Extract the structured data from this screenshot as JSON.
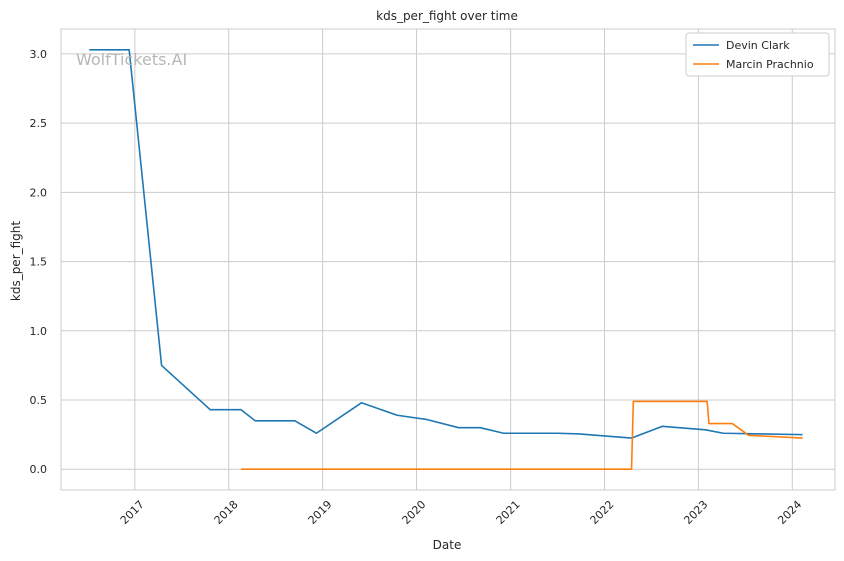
{
  "chart_data": {
    "type": "line",
    "title": "kds_per_fight over time",
    "xlabel": "Date",
    "ylabel": "kds_per_fight",
    "watermark": "WolfTickets.AI",
    "ylim": [
      -0.15,
      3.18
    ],
    "xlim": [
      "2016-03-20",
      "2024-06-15"
    ],
    "y_ticks": [
      0.0,
      0.5,
      1.0,
      1.5,
      2.0,
      2.5,
      3.0
    ],
    "y_tick_labels": [
      "0.0",
      "0.5",
      "1.0",
      "1.5",
      "2.0",
      "2.5",
      "3.0"
    ],
    "x_ticks": [
      "2017-01-01",
      "2018-01-01",
      "2019-01-01",
      "2020-01-01",
      "2021-01-01",
      "2022-01-01",
      "2023-01-01",
      "2024-01-01"
    ],
    "x_tick_labels": [
      "2017",
      "2018",
      "2019",
      "2020",
      "2021",
      "2022",
      "2023",
      "2024"
    ],
    "grid": true,
    "legend_position": "top-right",
    "series": [
      {
        "name": "Devin Clark",
        "color": "#1f77b4",
        "points": [
          {
            "x": "2016-07-08",
            "y": 3.03
          },
          {
            "x": "2016-12-10",
            "y": 3.03
          },
          {
            "x": "2017-04-15",
            "y": 0.75
          },
          {
            "x": "2017-10-21",
            "y": 0.43
          },
          {
            "x": "2018-02-18",
            "y": 0.43
          },
          {
            "x": "2018-04-14",
            "y": 0.35
          },
          {
            "x": "2018-09-15",
            "y": 0.35
          },
          {
            "x": "2018-12-08",
            "y": 0.26
          },
          {
            "x": "2019-06-01",
            "y": 0.48
          },
          {
            "x": "2019-10-18",
            "y": 0.39
          },
          {
            "x": "2020-02-08",
            "y": 0.36
          },
          {
            "x": "2020-06-13",
            "y": 0.3
          },
          {
            "x": "2020-09-05",
            "y": 0.3
          },
          {
            "x": "2020-12-05",
            "y": 0.26
          },
          {
            "x": "2021-07-03",
            "y": 0.26
          },
          {
            "x": "2021-09-25",
            "y": 0.255
          },
          {
            "x": "2022-04-16",
            "y": 0.225
          },
          {
            "x": "2022-08-13",
            "y": 0.31
          },
          {
            "x": "2023-01-28",
            "y": 0.285
          },
          {
            "x": "2023-04-08",
            "y": 0.26
          },
          {
            "x": "2024-02-10",
            "y": 0.25
          }
        ]
      },
      {
        "name": "Marcin Prachnio",
        "color": "#ff7f0e",
        "points": [
          {
            "x": "2018-02-18",
            "y": 0.0
          },
          {
            "x": "2022-04-16",
            "y": 0.0
          },
          {
            "x": "2022-04-23",
            "y": 0.49
          },
          {
            "x": "2023-02-04",
            "y": 0.49
          },
          {
            "x": "2023-02-11",
            "y": 0.33
          },
          {
            "x": "2023-05-13",
            "y": 0.33
          },
          {
            "x": "2023-07-15",
            "y": 0.245
          },
          {
            "x": "2024-02-10",
            "y": 0.225
          }
        ]
      }
    ]
  }
}
